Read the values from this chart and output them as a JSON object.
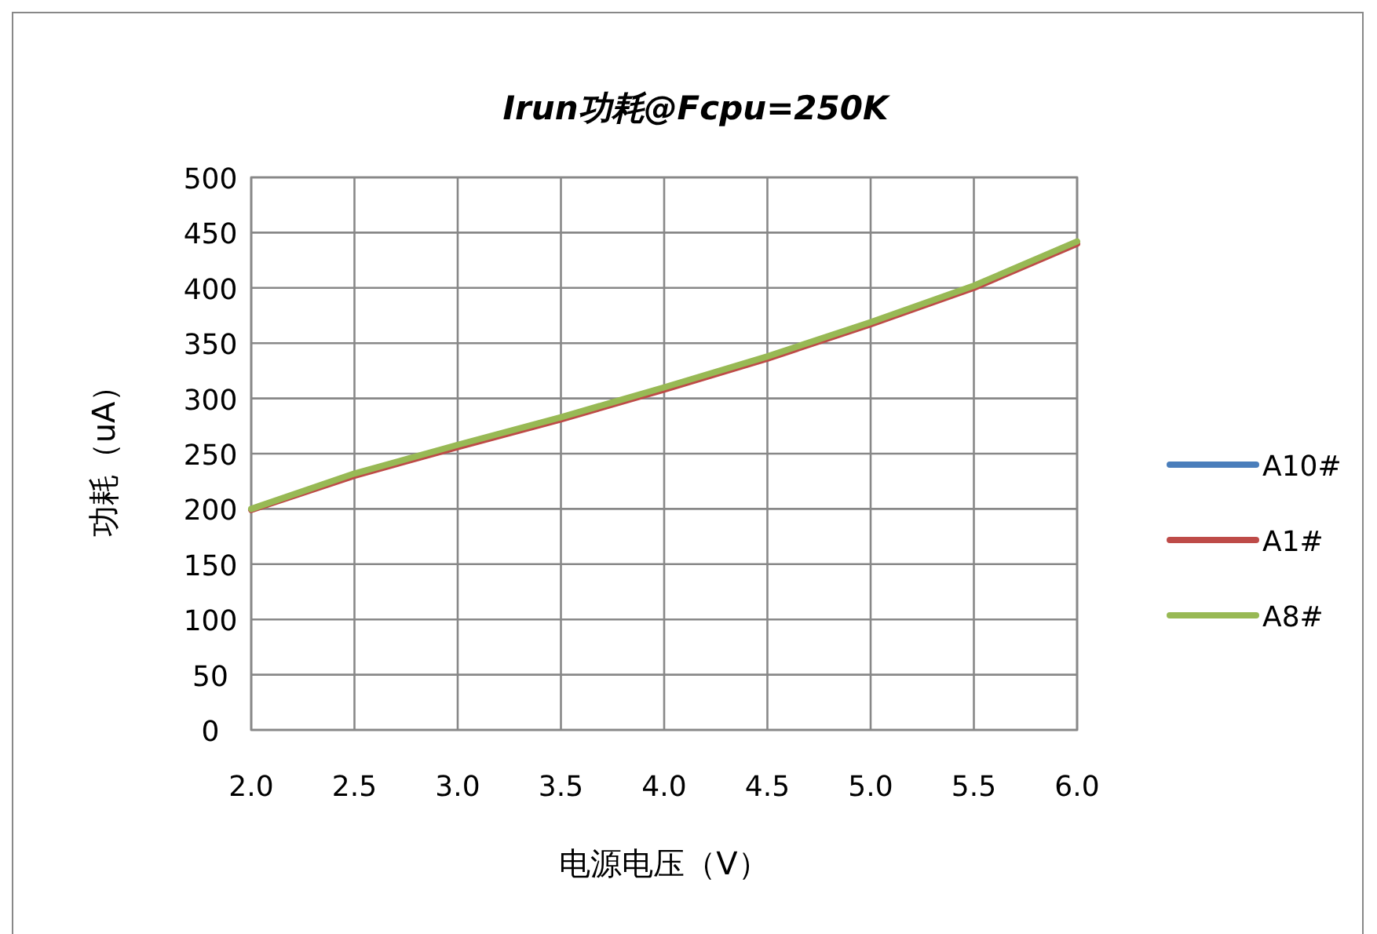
{
  "chart_data": {
    "type": "line",
    "title": "Irun功耗@Fcpu=250K",
    "xlabel": "电源电压（V）",
    "ylabel": "功耗（uA）",
    "x": [
      2.0,
      2.5,
      3.0,
      3.5,
      4.0,
      4.5,
      5.0,
      5.5,
      6.0
    ],
    "series": [
      {
        "name": "A10#",
        "color": "#4a7ebb",
        "values": [
          null,
          null,
          null,
          null,
          null,
          null,
          null,
          null,
          null
        ]
      },
      {
        "name": "A1#",
        "color": "#be4b48",
        "values": [
          199,
          230,
          256,
          281,
          308,
          336,
          367,
          400,
          440
        ]
      },
      {
        "name": "A8#",
        "color": "#98b954",
        "values": [
          200,
          232,
          258,
          283,
          310,
          338,
          369,
          402,
          442
        ]
      }
    ],
    "xlim": [
      2.0,
      6.0
    ],
    "xticks": [
      {
        "value": 2.0,
        "label": "2.0"
      },
      {
        "value": 2.5,
        "label": "2.5"
      },
      {
        "value": 3.0,
        "label": "3.0"
      },
      {
        "value": 3.5,
        "label": "3.5"
      },
      {
        "value": 4.0,
        "label": "4.0"
      },
      {
        "value": 4.5,
        "label": "4.5"
      },
      {
        "value": 5.0,
        "label": "5.0"
      },
      {
        "value": 5.5,
        "label": "5.5"
      },
      {
        "value": 6.0,
        "label": "6.0"
      }
    ],
    "ylim": [
      0,
      500
    ],
    "yticks": [
      0,
      50,
      100,
      150,
      200,
      250,
      300,
      350,
      400,
      450,
      500
    ],
    "grid": true,
    "legend": "right",
    "marker": "none",
    "line_style": "solid"
  }
}
